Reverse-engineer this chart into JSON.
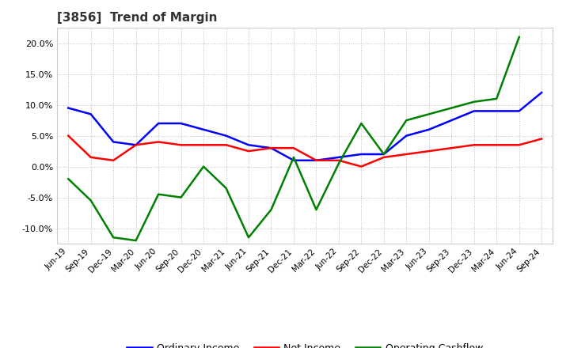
{
  "title": "[3856]  Trend of Margin",
  "x_labels": [
    "Jun-19",
    "Sep-19",
    "Dec-19",
    "Mar-20",
    "Jun-20",
    "Sep-20",
    "Dec-20",
    "Mar-21",
    "Jun-21",
    "Sep-21",
    "Dec-21",
    "Mar-22",
    "Jun-22",
    "Sep-22",
    "Dec-22",
    "Mar-23",
    "Jun-23",
    "Sep-23",
    "Dec-23",
    "Mar-24",
    "Jun-24",
    "Sep-24"
  ],
  "ordinary_income": [
    9.5,
    8.5,
    4.0,
    3.5,
    7.0,
    7.0,
    6.0,
    5.0,
    3.5,
    3.0,
    1.0,
    1.0,
    1.5,
    2.0,
    2.0,
    5.0,
    6.0,
    7.5,
    9.0,
    9.0,
    9.0,
    12.0
  ],
  "net_income": [
    5.0,
    1.5,
    1.0,
    3.5,
    4.0,
    3.5,
    3.5,
    3.5,
    2.5,
    3.0,
    3.0,
    1.0,
    1.0,
    0.0,
    1.5,
    2.0,
    2.5,
    3.0,
    3.5,
    3.5,
    3.5,
    4.5
  ],
  "operating_cashflow": [
    -2.0,
    -5.5,
    -11.5,
    -12.0,
    -4.5,
    -5.0,
    0.0,
    -3.5,
    -11.5,
    -7.0,
    1.5,
    -7.0,
    0.5,
    7.0,
    2.0,
    7.5,
    8.5,
    9.5,
    10.5,
    11.0,
    21.0,
    null
  ],
  "ylim": [
    -12.5,
    22.5
  ],
  "yticks": [
    -10.0,
    -5.0,
    0.0,
    5.0,
    10.0,
    15.0,
    20.0
  ],
  "line_color_ordinary": "#0000ff",
  "line_color_net": "#ff0000",
  "line_color_cashflow": "#008000",
  "legend_labels": [
    "Ordinary Income",
    "Net Income",
    "Operating Cashflow"
  ],
  "background_color": "#ffffff",
  "grid_color": "#bbbbbb",
  "title_color": "#333333"
}
